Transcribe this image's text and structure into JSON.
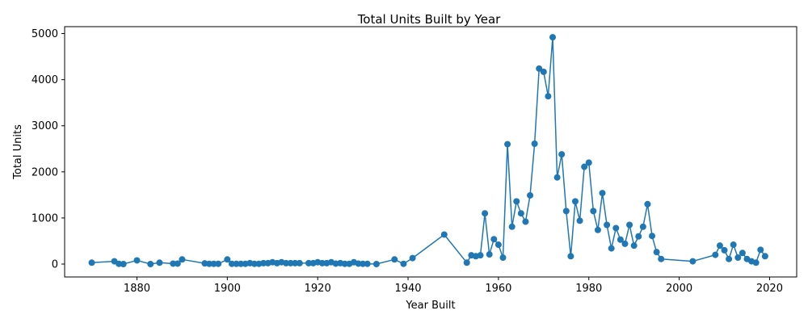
{
  "chart_data": {
    "type": "line",
    "title": "Total Units Built by Year",
    "xlabel": "Year Built",
    "ylabel": "Total Units",
    "xlim": [
      1864,
      2026
    ],
    "ylim": [
      -280,
      5150
    ],
    "xticks": [
      1880,
      1900,
      1920,
      1940,
      1960,
      1980,
      2000,
      2020
    ],
    "yticks": [
      0,
      1000,
      2000,
      3000,
      4000,
      5000
    ],
    "grid": false,
    "marker": "circle",
    "color": "#1f77b4",
    "series": [
      {
        "x": [
          1870,
          1875,
          1876,
          1877,
          1880,
          1883,
          1885,
          1888,
          1889,
          1890,
          1895,
          1896,
          1897,
          1898,
          1900,
          1901,
          1902,
          1903,
          1904,
          1905,
          1906,
          1907,
          1908,
          1909,
          1910,
          1911,
          1912,
          1913,
          1914,
          1915,
          1916,
          1918,
          1919,
          1920,
          1921,
          1922,
          1923,
          1924,
          1925,
          1926,
          1927,
          1928,
          1929,
          1930,
          1931,
          1933,
          1937,
          1939,
          1941,
          1948,
          1953,
          1954,
          1955,
          1956,
          1957,
          1958,
          1959,
          1960,
          1961,
          1962,
          1963,
          1964,
          1965,
          1966,
          1967,
          1968,
          1969,
          1970,
          1971,
          1972,
          1973,
          1974,
          1975,
          1976,
          1977,
          1978,
          1979,
          1980,
          1981,
          1982,
          1983,
          1984,
          1985,
          1986,
          1987,
          1988,
          1989,
          1990,
          1991,
          1992,
          1993,
          1994,
          1995,
          1996,
          2003,
          2008,
          2009,
          2010,
          2011,
          2012,
          2013,
          2014,
          2015,
          2016,
          2017,
          2018,
          2019
        ],
        "y": [
          30,
          60,
          5,
          0,
          80,
          0,
          30,
          10,
          10,
          100,
          15,
          5,
          5,
          5,
          100,
          5,
          5,
          5,
          5,
          20,
          5,
          5,
          20,
          20,
          40,
          20,
          40,
          20,
          20,
          20,
          20,
          20,
          20,
          40,
          20,
          20,
          40,
          10,
          20,
          5,
          5,
          40,
          10,
          5,
          5,
          0,
          100,
          5,
          130,
          640,
          30,
          190,
          170,
          190,
          1100,
          210,
          540,
          420,
          140,
          2600,
          810,
          1360,
          1100,
          920,
          1490,
          2610,
          4240,
          4170,
          3640,
          4920,
          1880,
          2380,
          1150,
          170,
          1360,
          940,
          2110,
          2200,
          1150,
          740,
          1540,
          850,
          340,
          780,
          530,
          440,
          850,
          400,
          600,
          810,
          1300,
          610,
          260,
          110,
          60,
          200,
          400,
          300,
          110,
          420,
          140,
          240,
          110,
          60,
          30,
          310,
          170
        ]
      }
    ]
  }
}
